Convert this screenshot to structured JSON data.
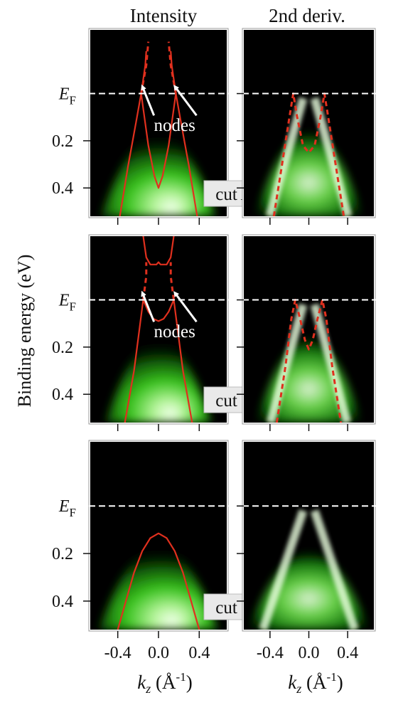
{
  "figure": {
    "column_titles": [
      "Intensity",
      "2nd deriv."
    ],
    "ylabel": "Binding energy (eV)",
    "xlabel": {
      "main": "k",
      "sub": "z",
      "unit_pre": " (Å",
      "unit_sup": "-1",
      "unit_post": ")"
    },
    "fermi_label": {
      "main": "E",
      "sub": "F"
    },
    "annotation": "nodes"
  },
  "chart_data": [
    {
      "type": "heatmap",
      "panel": "cut A — Intensity",
      "cut_label": "cut A",
      "xlim": [
        -0.67,
        0.67
      ],
      "ylim": [
        -0.27,
        0.52
      ],
      "x_ticks": [
        -0.4,
        0.0,
        0.4
      ],
      "y_ticks": [
        "E_F",
        "0.2",
        "0.4"
      ],
      "fermi_level_dashed": 0.0,
      "colormap": "black-green-white",
      "bands": [
        {
          "name": "",
          "style": "solid",
          "color": "#e0301e",
          "points": [
            [
              -0.38,
              0.52
            ],
            [
              -0.3,
              0.31
            ],
            [
              -0.22,
              0.12
            ],
            [
              -0.17,
              0.0
            ],
            [
              -0.13,
              -0.12
            ],
            [
              -0.12,
              -0.18
            ]
          ]
        },
        {
          "name": "",
          "style": "solid",
          "color": "#e0301e",
          "points": [
            [
              0.38,
              0.52
            ],
            [
              0.3,
              0.31
            ],
            [
              0.22,
              0.12
            ],
            [
              0.17,
              0.0
            ],
            [
              0.13,
              -0.12
            ],
            [
              0.12,
              -0.18
            ]
          ]
        },
        {
          "name": "",
          "style": "solid",
          "color": "#e0301e",
          "points": [
            [
              -0.17,
              0.0
            ],
            [
              -0.1,
              0.22
            ],
            [
              -0.04,
              0.35
            ],
            [
              0.0,
              0.4
            ],
            [
              0.04,
              0.35
            ],
            [
              0.1,
              0.22
            ],
            [
              0.17,
              0.0
            ]
          ]
        },
        {
          "name": "",
          "style": "dashed",
          "color": "#e0301e",
          "points": [
            [
              -0.17,
              0.0
            ],
            [
              -0.12,
              -0.12
            ],
            [
              -0.1,
              -0.22
            ]
          ]
        },
        {
          "name": "",
          "style": "dashed",
          "color": "#e0301e",
          "points": [
            [
              0.17,
              0.0
            ],
            [
              0.12,
              -0.12
            ],
            [
              0.1,
              -0.22
            ]
          ]
        }
      ],
      "annotation": "nodes"
    },
    {
      "type": "heatmap",
      "panel": "cut A — 2nd deriv.",
      "xlim": [
        -0.67,
        0.67
      ],
      "ylim": [
        -0.27,
        0.52
      ],
      "x_ticks": [
        -0.4,
        0.0,
        0.4
      ],
      "fermi_level_dashed": 0.0,
      "colormap": "black-green-white",
      "bands": [
        {
          "name": "",
          "style": "dashed",
          "color": "#e0301e",
          "points": [
            [
              -0.36,
              0.52
            ],
            [
              -0.28,
              0.31
            ],
            [
              -0.2,
              0.1
            ],
            [
              -0.16,
              0.0
            ],
            [
              -0.12,
              0.1
            ],
            [
              -0.06,
              0.22
            ],
            [
              0.0,
              0.25
            ],
            [
              0.06,
              0.22
            ],
            [
              0.12,
              0.1
            ],
            [
              0.16,
              0.0
            ],
            [
              0.2,
              0.1
            ],
            [
              0.28,
              0.31
            ],
            [
              0.36,
              0.52
            ]
          ]
        }
      ]
    },
    {
      "type": "heatmap",
      "panel": "cut B — Intensity",
      "cut_label": "cut B",
      "xlim": [
        -0.67,
        0.67
      ],
      "ylim": [
        -0.27,
        0.52
      ],
      "x_ticks": [
        -0.4,
        0.0,
        0.4
      ],
      "y_ticks": [
        "E_F",
        "0.2",
        "0.4"
      ],
      "fermi_level_dashed": 0.0,
      "colormap": "black-green-white",
      "bands": [
        {
          "name": "",
          "style": "solid",
          "color": "#e0301e",
          "points": [
            [
              -0.33,
              0.52
            ],
            [
              -0.24,
              0.3
            ],
            [
              -0.18,
              0.1
            ],
            [
              -0.15,
              0.0
            ],
            [
              -0.1,
              0.05
            ],
            [
              -0.05,
              0.08
            ],
            [
              0.0,
              0.09
            ],
            [
              0.05,
              0.08
            ],
            [
              0.1,
              0.05
            ],
            [
              0.15,
              0.0
            ],
            [
              0.18,
              0.1
            ],
            [
              0.24,
              0.3
            ],
            [
              0.33,
              0.52
            ]
          ]
        },
        {
          "name": "",
          "style": "solid",
          "color": "#e0301e",
          "points": [
            [
              -0.15,
              -0.27
            ],
            [
              -0.12,
              -0.18
            ],
            [
              -0.08,
              -0.15
            ],
            [
              -0.02,
              -0.15
            ],
            [
              0.0,
              -0.16
            ],
            [
              0.02,
              -0.15
            ],
            [
              0.08,
              -0.15
            ],
            [
              0.12,
              -0.18
            ],
            [
              0.15,
              -0.27
            ]
          ]
        },
        {
          "name": "",
          "style": "dashed",
          "color": "#e0301e",
          "points": [
            [
              -0.15,
              0.0
            ],
            [
              -0.12,
              -0.1
            ],
            [
              -0.12,
              -0.16
            ]
          ]
        },
        {
          "name": "",
          "style": "dashed",
          "color": "#e0301e",
          "points": [
            [
              0.15,
              0.0
            ],
            [
              0.12,
              -0.1
            ],
            [
              0.12,
              -0.16
            ]
          ]
        }
      ],
      "annotation": "nodes"
    },
    {
      "type": "heatmap",
      "panel": "cut B — 2nd deriv.",
      "xlim": [
        -0.67,
        0.67
      ],
      "ylim": [
        -0.27,
        0.52
      ],
      "x_ticks": [
        -0.4,
        0.0,
        0.4
      ],
      "fermi_level_dashed": 0.0,
      "colormap": "black-green-white",
      "bands": [
        {
          "name": "",
          "style": "dashed",
          "color": "#e0301e",
          "points": [
            [
              -0.33,
              0.52
            ],
            [
              -0.24,
              0.28
            ],
            [
              -0.18,
              0.08
            ],
            [
              -0.14,
              0.0
            ],
            [
              -0.09,
              0.08
            ],
            [
              -0.04,
              0.17
            ],
            [
              0.0,
              0.21
            ],
            [
              0.04,
              0.17
            ],
            [
              0.09,
              0.08
            ],
            [
              0.14,
              0.0
            ],
            [
              0.18,
              0.08
            ],
            [
              0.24,
              0.28
            ],
            [
              0.33,
              0.52
            ]
          ]
        }
      ]
    },
    {
      "type": "heatmap",
      "panel": "cut C — Intensity",
      "cut_label": "cut C",
      "xlim": [
        -0.67,
        0.67
      ],
      "ylim": [
        -0.27,
        0.52
      ],
      "x_ticks": [
        -0.4,
        0.0,
        0.4
      ],
      "y_ticks": [
        "E_F",
        "0.2",
        "0.4"
      ],
      "fermi_level_dashed": 0.0,
      "colormap": "black-green-white",
      "bands": [
        {
          "name": "",
          "style": "solid",
          "color": "#e0301e",
          "points": [
            [
              -0.4,
              0.52
            ],
            [
              -0.32,
              0.4
            ],
            [
              -0.24,
              0.28
            ],
            [
              -0.16,
              0.19
            ],
            [
              -0.08,
              0.135
            ],
            [
              0.0,
              0.115
            ],
            [
              0.08,
              0.135
            ],
            [
              0.16,
              0.19
            ],
            [
              0.24,
              0.28
            ],
            [
              0.32,
              0.4
            ],
            [
              0.4,
              0.52
            ]
          ]
        }
      ]
    },
    {
      "type": "heatmap",
      "panel": "cut C — 2nd deriv.",
      "xlim": [
        -0.67,
        0.67
      ],
      "ylim": [
        -0.27,
        0.52
      ],
      "x_ticks": [
        -0.4,
        0.0,
        0.4
      ],
      "fermi_level_dashed": 0.0,
      "colormap": "black-green-white",
      "bands": []
    }
  ]
}
